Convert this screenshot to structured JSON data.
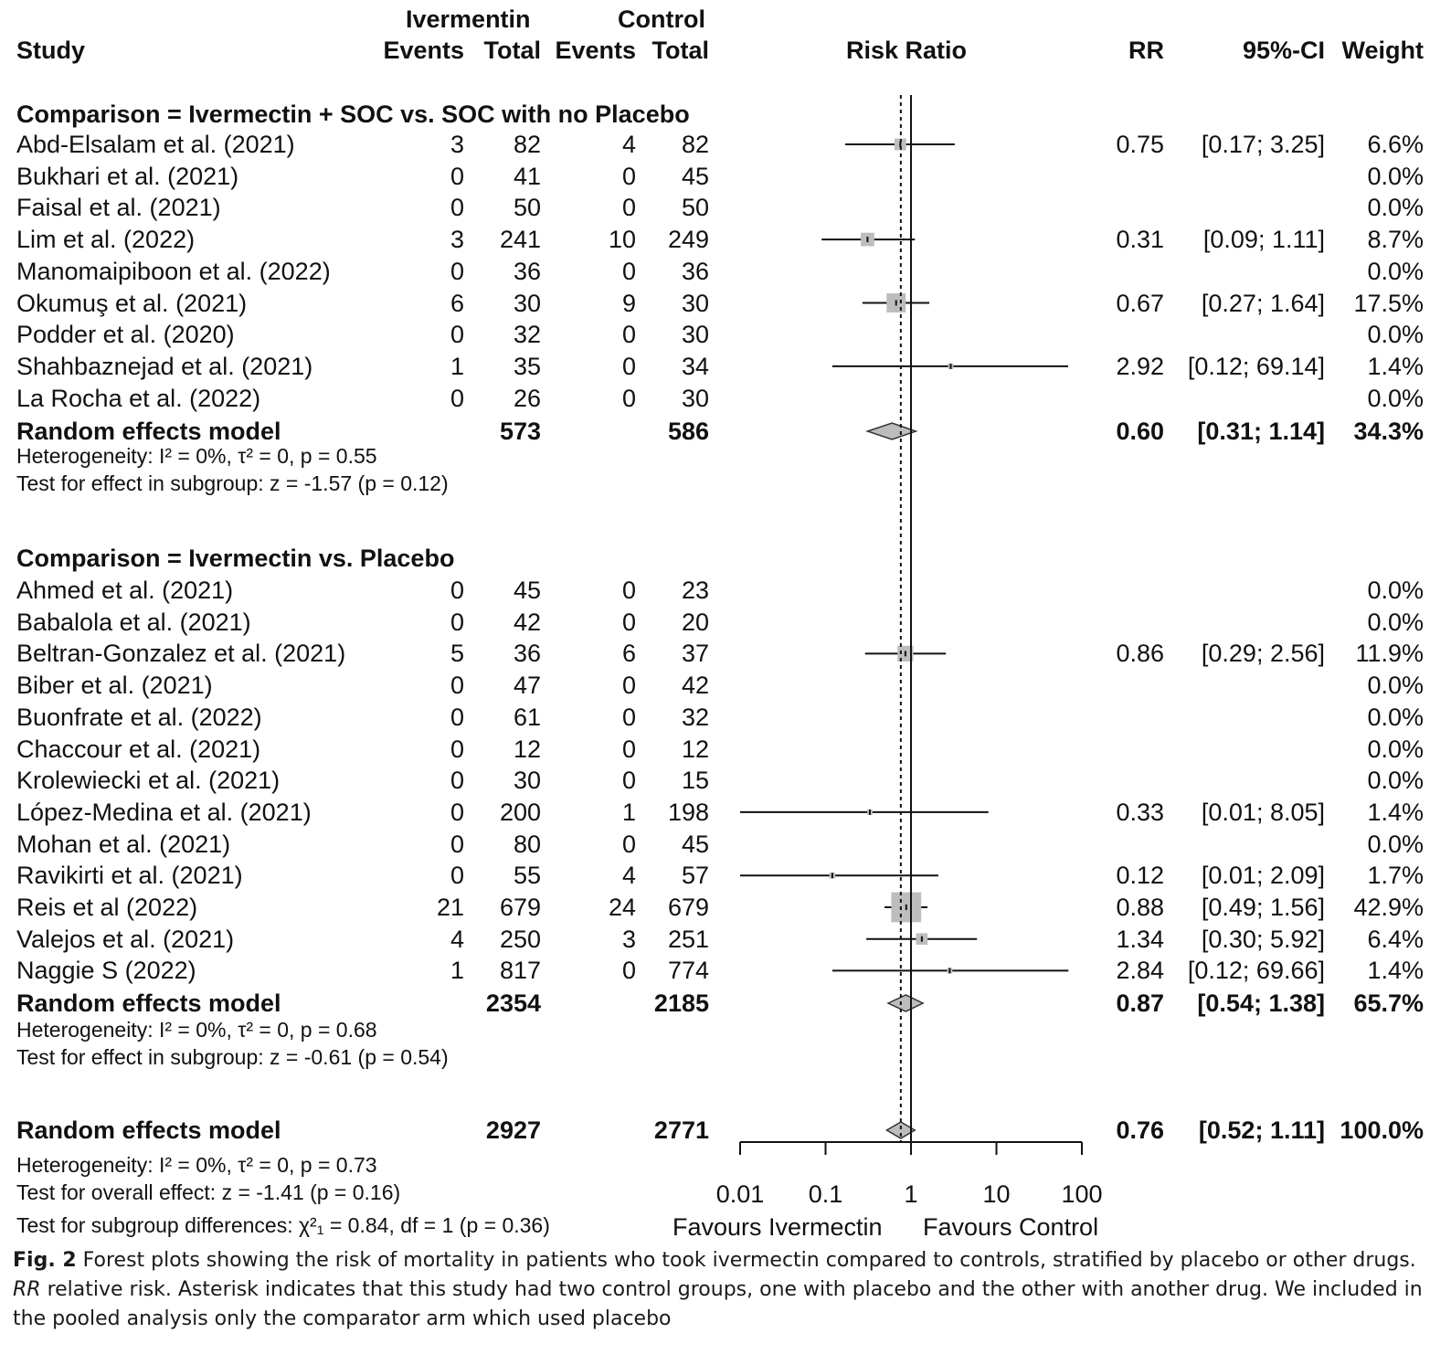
{
  "header": {
    "study": "Study",
    "ivermectin_group": "Ivermentin",
    "control_group": "Control",
    "events": "Events",
    "total": "Total",
    "risk_ratio": "Risk Ratio",
    "rr": "RR",
    "ci": "95%-CI",
    "weight": "Weight"
  },
  "chart_data": {
    "type": "forest",
    "xscale": "log",
    "xlim": [
      0.01,
      100
    ],
    "xticks": [
      "0.01",
      "0.1",
      "1",
      "10",
      "100"
    ],
    "xtick_values": [
      0.01,
      0.1,
      1,
      10,
      100
    ],
    "null_line": 1,
    "overall_line": 0.76,
    "left_label": "Favours Ivermectin",
    "right_label": "Favours Control",
    "subgroups": [
      {
        "title": "Comparison = Ivermectin + SOC vs. SOC with no Placebo",
        "studies": [
          {
            "name": "Abd-Elsalam et al. (2021)",
            "e_iv": "3",
            "n_iv": "82",
            "e_c": "4",
            "n_c": "82",
            "rr": 0.75,
            "lo": 0.17,
            "hi": 3.25,
            "rr_text": "0.75",
            "ci_text": "[0.17;  3.25]",
            "weight_text": "6.6%",
            "weight": 6.6
          },
          {
            "name": "Bukhari et al. (2021)",
            "e_iv": "0",
            "n_iv": "41",
            "e_c": "0",
            "n_c": "45",
            "rr": null,
            "lo": null,
            "hi": null,
            "rr_text": "",
            "ci_text": "",
            "weight_text": "0.0%",
            "weight": 0
          },
          {
            "name": "Faisal et al. (2021)",
            "e_iv": "0",
            "n_iv": "50",
            "e_c": "0",
            "n_c": "50",
            "rr": null,
            "lo": null,
            "hi": null,
            "rr_text": "",
            "ci_text": "",
            "weight_text": "0.0%",
            "weight": 0
          },
          {
            "name": "Lim et al. (2022)",
            "e_iv": "3",
            "n_iv": "241",
            "e_c": "10",
            "n_c": "249",
            "rr": 0.31,
            "lo": 0.09,
            "hi": 1.11,
            "rr_text": "0.31",
            "ci_text": "[0.09;  1.11]",
            "weight_text": "8.7%",
            "weight": 8.7
          },
          {
            "name": "Manomaipiboon et al. (2022)",
            "e_iv": "0",
            "n_iv": "36",
            "e_c": "0",
            "n_c": "36",
            "rr": null,
            "lo": null,
            "hi": null,
            "rr_text": "",
            "ci_text": "",
            "weight_text": "0.0%",
            "weight": 0
          },
          {
            "name": "Okumuş et al. (2021)",
            "e_iv": "6",
            "n_iv": "30",
            "e_c": "9",
            "n_c": "30",
            "rr": 0.67,
            "lo": 0.27,
            "hi": 1.64,
            "rr_text": "0.67",
            "ci_text": "[0.27;  1.64]",
            "weight_text": "17.5%",
            "weight": 17.5
          },
          {
            "name": "Podder et al. (2020)",
            "e_iv": "0",
            "n_iv": "32",
            "e_c": "0",
            "n_c": "30",
            "rr": null,
            "lo": null,
            "hi": null,
            "rr_text": "",
            "ci_text": "",
            "weight_text": "0.0%",
            "weight": 0
          },
          {
            "name": "Shahbaznejad et al. (2021)",
            "e_iv": "1",
            "n_iv": "35",
            "e_c": "0",
            "n_c": "34",
            "rr": 2.92,
            "lo": 0.12,
            "hi": 69.14,
            "rr_text": "2.92",
            "ci_text": "[0.12; 69.14]",
            "weight_text": "1.4%",
            "weight": 1.4
          },
          {
            "name": "La Rocha et al. (2022)",
            "e_iv": "0",
            "n_iv": "26",
            "e_c": "0",
            "n_c": "30",
            "rr": null,
            "lo": null,
            "hi": null,
            "rr_text": "",
            "ci_text": "",
            "weight_text": "0.0%",
            "weight": 0
          }
        ],
        "model": {
          "name": "Random effects model",
          "n_iv": "573",
          "n_c": "586",
          "rr": 0.6,
          "lo": 0.31,
          "hi": 1.14,
          "rr_text": "0.60",
          "ci_text": "[0.31;  1.14]",
          "weight_text": "34.3%"
        },
        "heterogeneity": "Heterogeneity: I² = 0%, τ² = 0, p = 0.55",
        "test": "Test for effect in subgroup: z = -1.57 (p = 0.12)"
      },
      {
        "title": "Comparison = Ivermectin vs. Placebo",
        "studies": [
          {
            "name": "Ahmed  et al. (2021)",
            "e_iv": "0",
            "n_iv": "45",
            "e_c": "0",
            "n_c": "23",
            "rr": null,
            "lo": null,
            "hi": null,
            "rr_text": "",
            "ci_text": "",
            "weight_text": "0.0%",
            "weight": 0
          },
          {
            "name": "Babalola et al. (2021)",
            "e_iv": "0",
            "n_iv": "42",
            "e_c": "0",
            "n_c": "20",
            "rr": null,
            "lo": null,
            "hi": null,
            "rr_text": "",
            "ci_text": "",
            "weight_text": "0.0%",
            "weight": 0
          },
          {
            "name": "Beltran-Gonzalez et al. (2021)",
            "e_iv": "5",
            "n_iv": "36",
            "e_c": "6",
            "n_c": "37",
            "rr": 0.86,
            "lo": 0.29,
            "hi": 2.56,
            "rr_text": "0.86",
            "ci_text": "[0.29;  2.56]",
            "weight_text": "11.9%",
            "weight": 11.9
          },
          {
            "name": "Biber et al. (2021)",
            "e_iv": "0",
            "n_iv": "47",
            "e_c": "0",
            "n_c": "42",
            "rr": null,
            "lo": null,
            "hi": null,
            "rr_text": "",
            "ci_text": "",
            "weight_text": "0.0%",
            "weight": 0
          },
          {
            "name": "Buonfrate et al. (2022)",
            "e_iv": "0",
            "n_iv": "61",
            "e_c": "0",
            "n_c": "32",
            "rr": null,
            "lo": null,
            "hi": null,
            "rr_text": "",
            "ci_text": "",
            "weight_text": "0.0%",
            "weight": 0
          },
          {
            "name": "Chaccour et al. (2021)",
            "e_iv": "0",
            "n_iv": "12",
            "e_c": "0",
            "n_c": "12",
            "rr": null,
            "lo": null,
            "hi": null,
            "rr_text": "",
            "ci_text": "",
            "weight_text": "0.0%",
            "weight": 0
          },
          {
            "name": "Krolewiecki et al. (2021)",
            "e_iv": "0",
            "n_iv": "30",
            "e_c": "0",
            "n_c": "15",
            "rr": null,
            "lo": null,
            "hi": null,
            "rr_text": "",
            "ci_text": "",
            "weight_text": "0.0%",
            "weight": 0
          },
          {
            "name": "López-Medina et al. (2021)",
            "e_iv": "0",
            "n_iv": "200",
            "e_c": "1",
            "n_c": "198",
            "rr": 0.33,
            "lo": 0.01,
            "hi": 8.05,
            "rr_text": "0.33",
            "ci_text": "[0.01;  8.05]",
            "weight_text": "1.4%",
            "weight": 1.4
          },
          {
            "name": "Mohan et al. (2021)",
            "e_iv": "0",
            "n_iv": "80",
            "e_c": "0",
            "n_c": "45",
            "rr": null,
            "lo": null,
            "hi": null,
            "rr_text": "",
            "ci_text": "",
            "weight_text": "0.0%",
            "weight": 0
          },
          {
            "name": "Ravikirti et al. (2021)",
            "e_iv": "0",
            "n_iv": "55",
            "e_c": "4",
            "n_c": "57",
            "rr": 0.12,
            "lo": 0.01,
            "hi": 2.09,
            "rr_text": "0.12",
            "ci_text": "[0.01;  2.09]",
            "weight_text": "1.7%",
            "weight": 1.7
          },
          {
            "name": "Reis et al (2022)",
            "e_iv": "21",
            "n_iv": "679",
            "e_c": "24",
            "n_c": "679",
            "rr": 0.88,
            "lo": 0.49,
            "hi": 1.56,
            "rr_text": "0.88",
            "ci_text": "[0.49;  1.56]",
            "weight_text": "42.9%",
            "weight": 42.9
          },
          {
            "name": "Valejos et al. (2021)",
            "e_iv": "4",
            "n_iv": "250",
            "e_c": "3",
            "n_c": "251",
            "rr": 1.34,
            "lo": 0.3,
            "hi": 5.92,
            "rr_text": "1.34",
            "ci_text": "[0.30;  5.92]",
            "weight_text": "6.4%",
            "weight": 6.4
          },
          {
            "name": "Naggie S (2022)",
            "e_iv": "1",
            "n_iv": "817",
            "e_c": "0",
            "n_c": "774",
            "rr": 2.84,
            "lo": 0.12,
            "hi": 69.66,
            "rr_text": "2.84",
            "ci_text": "[0.12; 69.66]",
            "weight_text": "1.4%",
            "weight": 1.4
          }
        ],
        "model": {
          "name": "Random effects model",
          "n_iv": "2354",
          "n_c": "2185",
          "rr": 0.87,
          "lo": 0.54,
          "hi": 1.38,
          "rr_text": "0.87",
          "ci_text": "[0.54;  1.38]",
          "weight_text": "65.7%"
        },
        "heterogeneity": "Heterogeneity: I² = 0%, τ² = 0, p = 0.68",
        "test": "Test for effect in subgroup: z = -0.61 (p = 0.54)"
      }
    ],
    "overall": {
      "name": "Random effects model",
      "n_iv": "2927",
      "n_c": "2771",
      "rr": 0.76,
      "lo": 0.52,
      "hi": 1.11,
      "rr_text": "0.76",
      "ci_text": "[0.52;  1.11]",
      "weight_text": "100.0%",
      "heterogeneity": "Heterogeneity: I² = 0%, τ² = 0, p = 0.73",
      "test_overall": "Test for overall effect: z = -1.41 (p = 0.16)",
      "test_subgroup": "Test for subgroup differences: χ²₁ = 0.84, df = 1 (p = 0.36)"
    }
  },
  "caption": {
    "fig_label": "Fig. 2",
    "text_a": "  Forest plots showing the risk of mortality in patients who took ivermectin compared to controls, stratified by placebo or other drugs. ",
    "rr_abbr": "RR",
    "text_b": " relative risk. Asterisk indicates that this study had two control groups, one with placebo and the other with another drug. We included in the pooled analysis only the comparator arm which used placebo"
  }
}
